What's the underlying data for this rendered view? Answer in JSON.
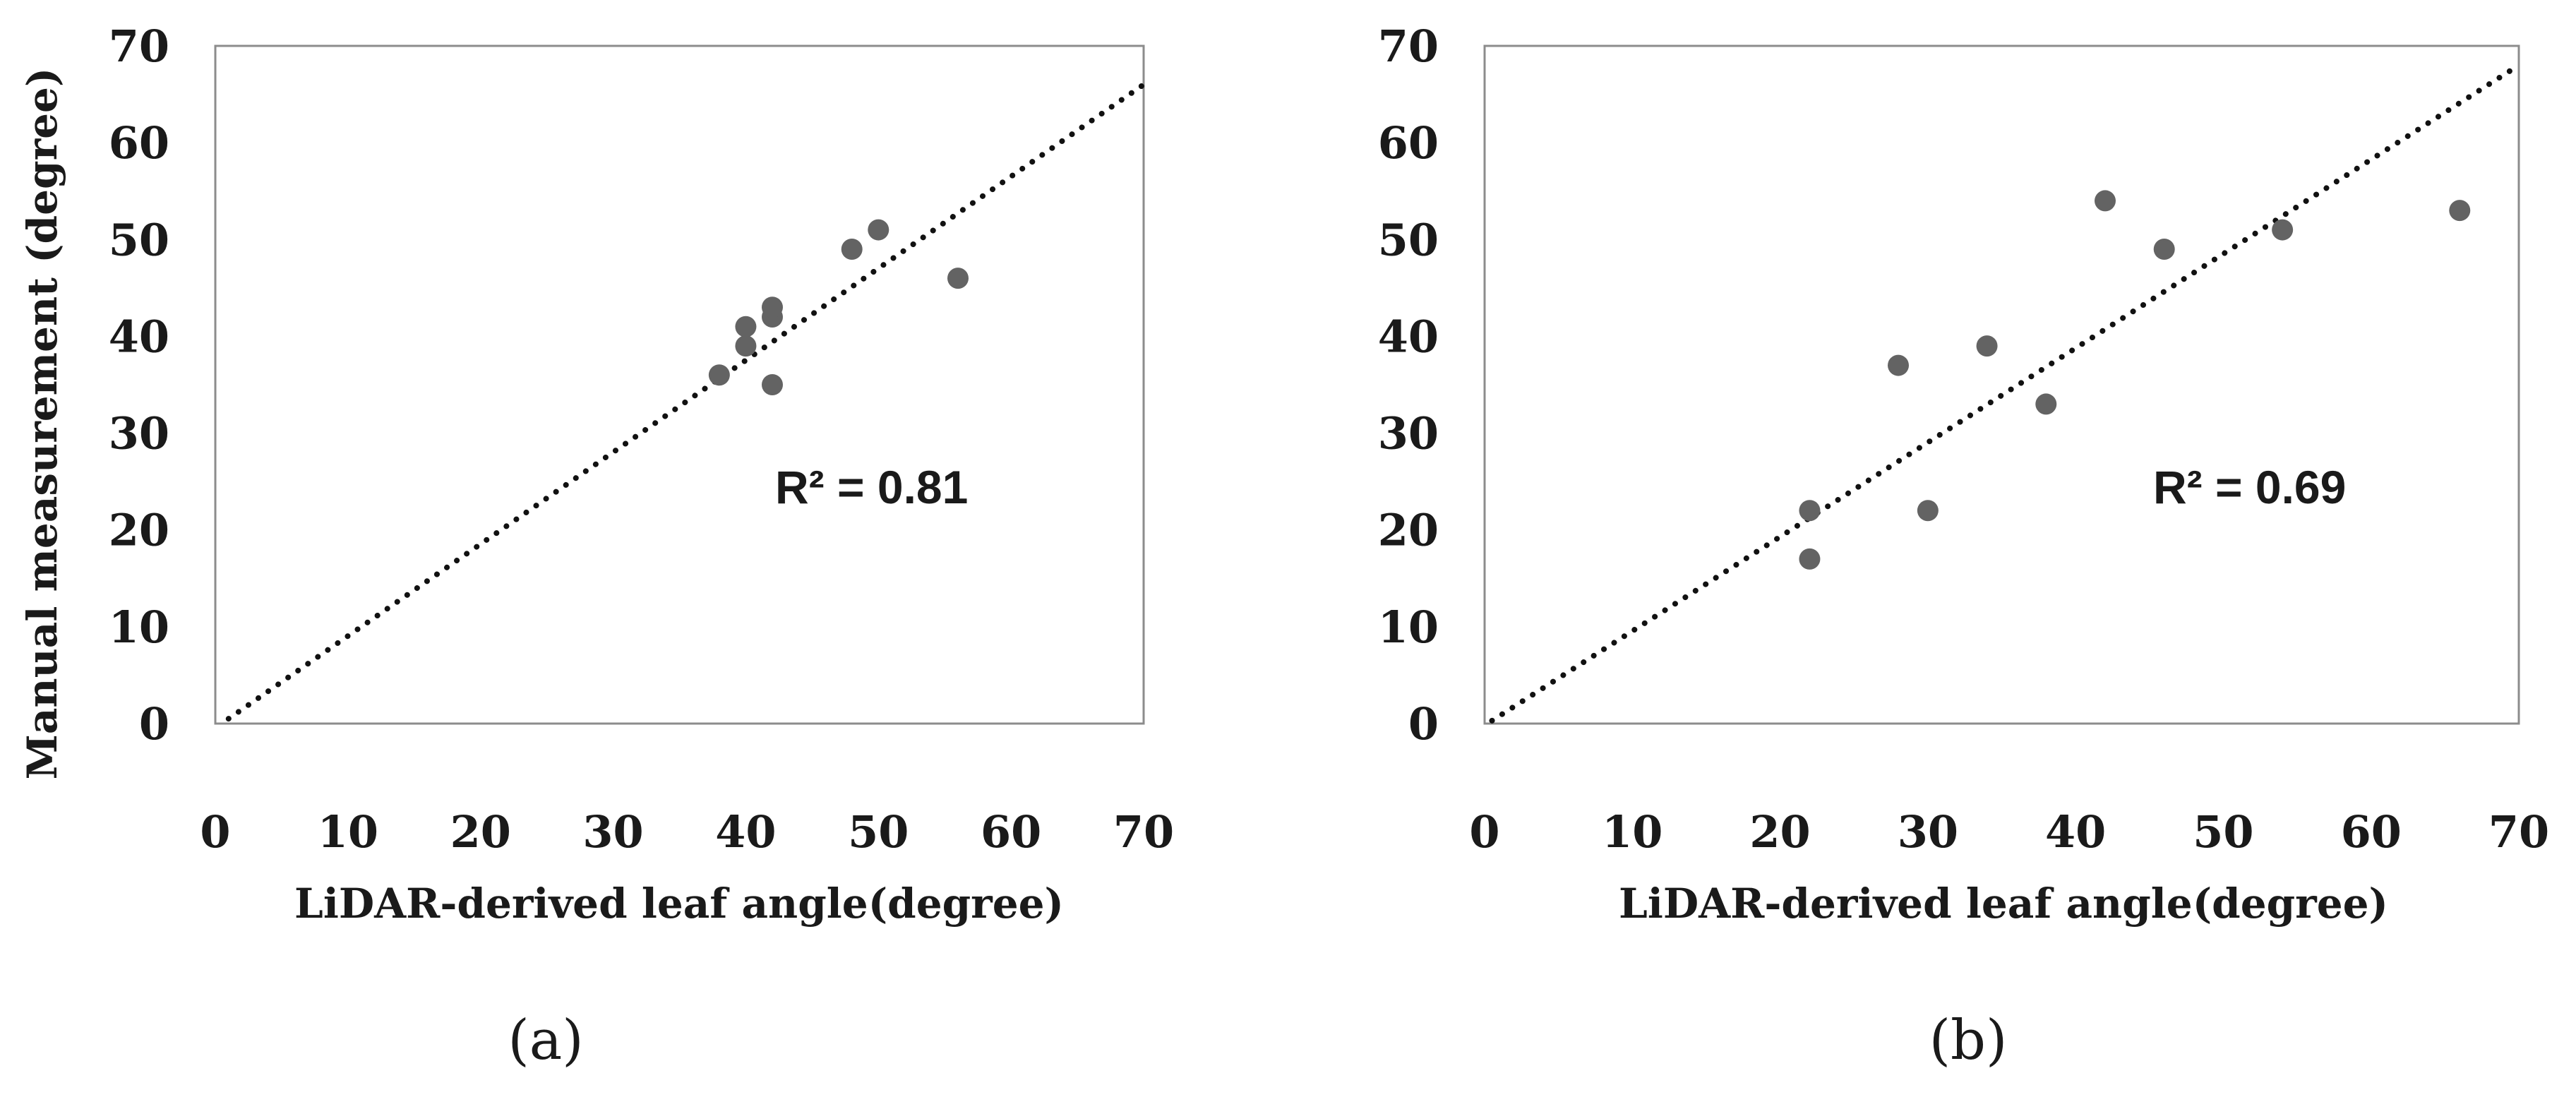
{
  "chart_data": [
    {
      "type": "scatter",
      "panel_label": "(a)",
      "xlabel": "LiDAR-derived leaf angle(degree)",
      "ylabel": "Manual measurement (degree)",
      "xlim": [
        0,
        70
      ],
      "ylim": [
        0,
        70
      ],
      "xticks": [
        "0",
        "10",
        "20",
        "30",
        "40",
        "50",
        "60",
        "70"
      ],
      "yticks": [
        "0",
        "10",
        "20",
        "30",
        "40",
        "50",
        "60",
        "70"
      ],
      "points": [
        {
          "x": 38,
          "y": 36
        },
        {
          "x": 40,
          "y": 39
        },
        {
          "x": 40,
          "y": 41
        },
        {
          "x": 42,
          "y": 35
        },
        {
          "x": 42,
          "y": 42
        },
        {
          "x": 42,
          "y": 43
        },
        {
          "x": 48,
          "y": 49
        },
        {
          "x": 50,
          "y": 51
        },
        {
          "x": 56,
          "y": 46
        }
      ],
      "trendline": {
        "x": [
          1,
          70
        ],
        "y": [
          0.5,
          66
        ]
      },
      "annotation": "R² = 0.81",
      "marker_color": "#636363",
      "grid": false
    },
    {
      "type": "scatter",
      "panel_label": "(b)",
      "xlabel": "LiDAR-derived leaf angle(degree)",
      "ylabel": "",
      "xlim": [
        0,
        70
      ],
      "ylim": [
        0,
        70
      ],
      "xticks": [
        "0",
        "10",
        "20",
        "30",
        "40",
        "50",
        "60",
        "70"
      ],
      "yticks": [
        "0",
        "10",
        "20",
        "30",
        "40",
        "50",
        "60",
        "70"
      ],
      "points": [
        {
          "x": 22,
          "y": 17
        },
        {
          "x": 22,
          "y": 22
        },
        {
          "x": 28,
          "y": 37
        },
        {
          "x": 30,
          "y": 22
        },
        {
          "x": 34,
          "y": 39
        },
        {
          "x": 38,
          "y": 33
        },
        {
          "x": 42,
          "y": 54
        },
        {
          "x": 46,
          "y": 49
        },
        {
          "x": 54,
          "y": 51
        },
        {
          "x": 66,
          "y": 53
        }
      ],
      "trendline": {
        "x": [
          0.5,
          70
        ],
        "y": [
          0.3,
          68
        ]
      },
      "annotation": "R² = 0.69",
      "marker_color": "#636363",
      "grid": false
    }
  ]
}
